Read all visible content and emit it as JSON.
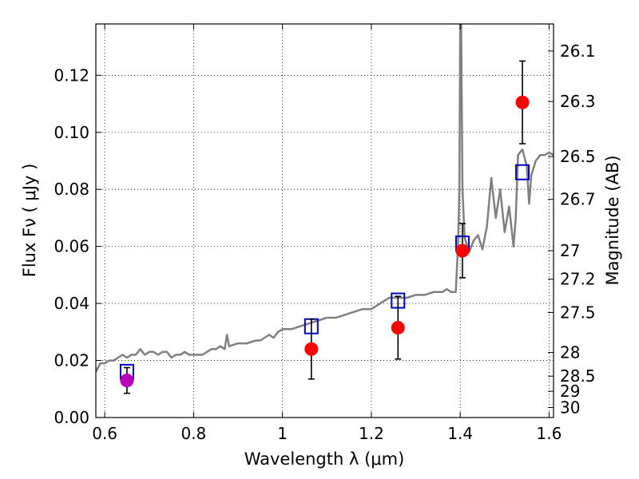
{
  "chart_data": {
    "type": "scatter",
    "title": "",
    "xlabel": "Wavelength  λ (μm)",
    "ylabel": "Flux  Fν  ( μJy )",
    "ylabel_right": "Magnitude (AB)",
    "xlim": [
      0.58,
      1.61
    ],
    "ylim": [
      0.0,
      0.138
    ],
    "grid": true,
    "x_ticks": [
      0.6,
      0.8,
      1.0,
      1.2,
      1.4,
      1.6
    ],
    "x_tick_labels": [
      "0.6",
      "0.8",
      "1",
      "1.2",
      "1.4",
      "1.6"
    ],
    "y_ticks": [
      0.0,
      0.02,
      0.04,
      0.06,
      0.08,
      0.1,
      0.12
    ],
    "y_tick_labels": [
      "0.00",
      "0.02",
      "0.04",
      "0.06",
      "0.08",
      "0.10",
      "0.12"
    ],
    "mag_ticks": [
      {
        "label": "26.1",
        "flux": 0.1285
      },
      {
        "label": "26.3",
        "flux": 0.1108
      },
      {
        "label": "26.5",
        "flux": 0.0915
      },
      {
        "label": "26.7",
        "flux": 0.0765
      },
      {
        "label": "27",
        "flux": 0.0585
      },
      {
        "label": "27.2",
        "flux": 0.0485
      },
      {
        "label": "27.5",
        "flux": 0.0368
      },
      {
        "label": "28",
        "flux": 0.0228
      },
      {
        "label": "28.5",
        "flux": 0.0145
      },
      {
        "label": "29",
        "flux": 0.0092
      },
      {
        "label": "30",
        "flux": 0.0035
      }
    ],
    "series": [
      {
        "type": "line",
        "color": "#808080",
        "x": [
          0.58,
          0.59,
          0.6,
          0.61,
          0.62,
          0.63,
          0.64,
          0.65,
          0.66,
          0.67,
          0.68,
          0.69,
          0.7,
          0.71,
          0.72,
          0.73,
          0.74,
          0.75,
          0.76,
          0.77,
          0.78,
          0.79,
          0.8,
          0.82,
          0.84,
          0.85,
          0.86,
          0.87,
          0.875,
          0.88,
          0.9,
          0.92,
          0.94,
          0.95,
          0.96,
          0.97,
          0.98,
          0.99,
          1.0,
          1.02,
          1.04,
          1.06,
          1.08,
          1.1,
          1.12,
          1.14,
          1.16,
          1.18,
          1.2,
          1.22,
          1.24,
          1.26,
          1.28,
          1.3,
          1.32,
          1.34,
          1.36,
          1.37,
          1.38,
          1.39,
          1.395,
          1.398,
          1.4,
          1.402,
          1.405,
          1.41,
          1.42,
          1.43,
          1.44,
          1.45,
          1.46,
          1.47,
          1.48,
          1.49,
          1.5,
          1.51,
          1.52,
          1.525,
          1.53,
          1.54,
          1.55,
          1.555,
          1.56,
          1.57,
          1.58,
          1.59,
          1.6,
          1.61
        ],
        "y": [
          0.016,
          0.019,
          0.019,
          0.02,
          0.02,
          0.021,
          0.022,
          0.021,
          0.022,
          0.022,
          0.024,
          0.022,
          0.023,
          0.023,
          0.022,
          0.023,
          0.023,
          0.021,
          0.022,
          0.022,
          0.023,
          0.022,
          0.022,
          0.022,
          0.024,
          0.024,
          0.025,
          0.024,
          0.029,
          0.025,
          0.026,
          0.026,
          0.027,
          0.027,
          0.028,
          0.029,
          0.028,
          0.03,
          0.031,
          0.031,
          0.032,
          0.033,
          0.034,
          0.035,
          0.035,
          0.036,
          0.037,
          0.038,
          0.038,
          0.04,
          0.042,
          0.042,
          0.042,
          0.043,
          0.043,
          0.044,
          0.044,
          0.045,
          0.044,
          0.044,
          0.06,
          0.08,
          0.139,
          0.139,
          0.08,
          0.063,
          0.058,
          0.062,
          0.064,
          0.059,
          0.067,
          0.084,
          0.07,
          0.08,
          0.065,
          0.074,
          0.06,
          0.07,
          0.092,
          0.094,
          0.088,
          0.075,
          0.085,
          0.09,
          0.092,
          0.092,
          0.093,
          0.092
        ]
      },
      {
        "type": "model_points",
        "marker": "open-square",
        "color": "#0000cc",
        "x": [
          0.65,
          1.065,
          1.26,
          1.405,
          1.54
        ],
        "y": [
          0.016,
          0.032,
          0.041,
          0.061,
          0.086
        ]
      },
      {
        "type": "observed_points",
        "marker": "filled-circle",
        "colors": [
          "#bb00bb",
          "#ff0000",
          "#ff0000",
          "#ff0000",
          "#ff0000"
        ],
        "x": [
          0.65,
          1.065,
          1.26,
          1.405,
          1.54
        ],
        "y": [
          0.013,
          0.024,
          0.0315,
          0.0585,
          0.1105
        ],
        "yerr": [
          0.0045,
          0.0105,
          0.011,
          0.0095,
          0.0145
        ]
      }
    ]
  }
}
